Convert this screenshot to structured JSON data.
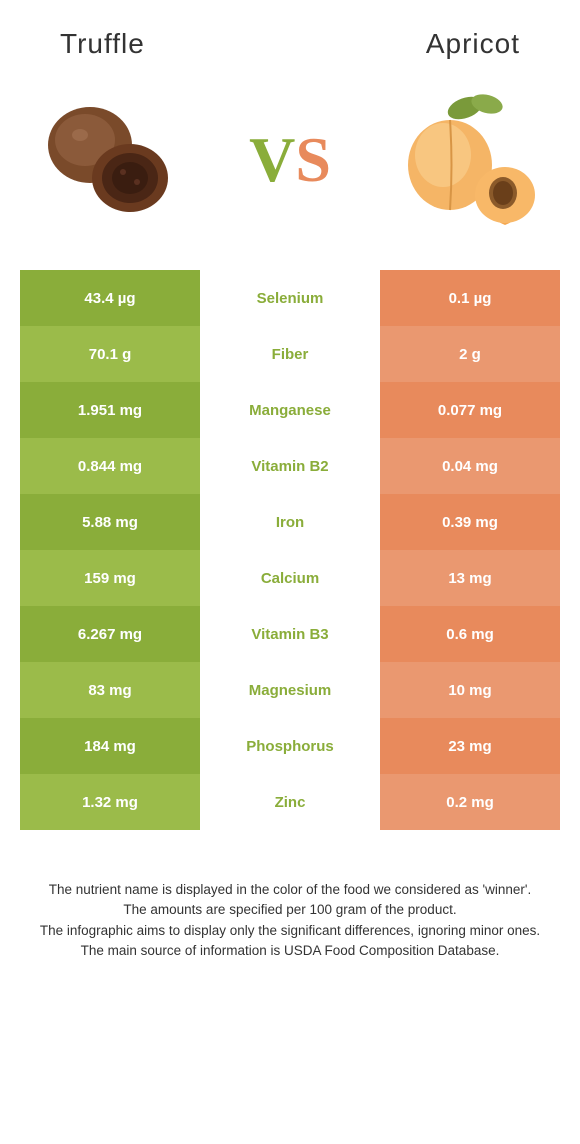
{
  "header": {
    "left_title": "Truffle",
    "right_title": "Apricot"
  },
  "vs": {
    "v": "V",
    "s": "S"
  },
  "colors": {
    "left_a": "#8aad3a",
    "left_b": "#9bbb4a",
    "right_a": "#e88a5c",
    "right_b": "#ea9870",
    "mid_winner_left": "#8aad3a",
    "mid_winner_right": "#e88a5c"
  },
  "rows": [
    {
      "left": "43.4 µg",
      "label": "Selenium",
      "right": "0.1 µg",
      "winner": "left"
    },
    {
      "left": "70.1 g",
      "label": "Fiber",
      "right": "2 g",
      "winner": "left"
    },
    {
      "left": "1.951 mg",
      "label": "Manganese",
      "right": "0.077 mg",
      "winner": "left"
    },
    {
      "left": "0.844 mg",
      "label": "Vitamin B2",
      "right": "0.04 mg",
      "winner": "left"
    },
    {
      "left": "5.88 mg",
      "label": "Iron",
      "right": "0.39 mg",
      "winner": "left"
    },
    {
      "left": "159 mg",
      "label": "Calcium",
      "right": "13 mg",
      "winner": "left"
    },
    {
      "left": "6.267 mg",
      "label": "Vitamin B3",
      "right": "0.6 mg",
      "winner": "left"
    },
    {
      "left": "83 mg",
      "label": "Magnesium",
      "right": "10 mg",
      "winner": "left"
    },
    {
      "left": "184 mg",
      "label": "Phosphorus",
      "right": "23 mg",
      "winner": "left"
    },
    {
      "left": "1.32 mg",
      "label": "Zinc",
      "right": "0.2 mg",
      "winner": "left"
    }
  ],
  "footer": {
    "line1": "The nutrient name is displayed in the color of the food we considered as 'winner'.",
    "line2": "The amounts are specified per 100 gram of the product.",
    "line3": "The infographic aims to display only the significant differences, ignoring minor ones.",
    "line4": "The main source of information is USDA Food Composition Database."
  }
}
